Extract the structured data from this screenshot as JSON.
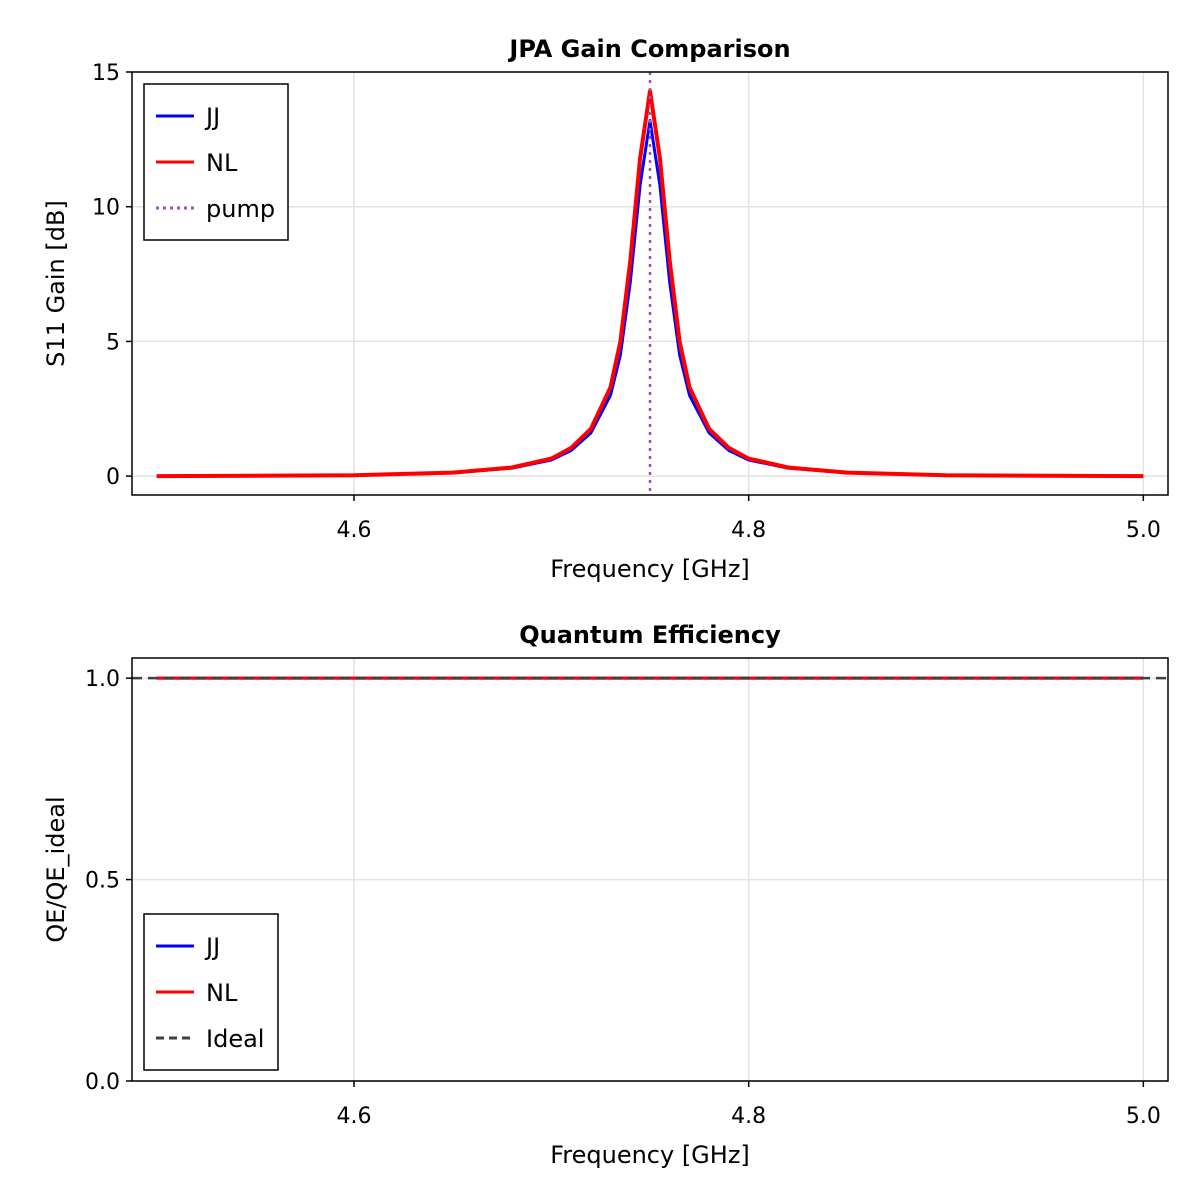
{
  "chart_data": [
    {
      "type": "line",
      "title": "JPA Gain Comparison",
      "xlabel": "Frequency [GHz]",
      "ylabel": "S11 Gain [dB]",
      "xlim": [
        4.4875,
        5.0125
      ],
      "ylim": [
        -0.7,
        15
      ],
      "x_ticks": [
        4.6,
        4.8,
        5.0
      ],
      "x_tick_labels": [
        "4.6",
        "4.8",
        "5.0"
      ],
      "y_ticks": [
        0,
        5,
        10,
        15
      ],
      "y_tick_labels": [
        "0",
        "5",
        "10",
        "15"
      ],
      "grid": true,
      "legend_position": "top-left",
      "series": [
        {
          "name": "JJ",
          "color": "#0000ff",
          "style": "solid",
          "x": [
            4.5,
            4.6,
            4.65,
            4.68,
            4.7,
            4.71,
            4.72,
            4.73,
            4.735,
            4.74,
            4.745,
            4.75,
            4.755,
            4.76,
            4.765,
            4.77,
            4.78,
            4.79,
            4.8,
            4.82,
            4.85,
            4.9,
            5.0
          ],
          "y": [
            0.0,
            0.03,
            0.12,
            0.3,
            0.6,
            0.95,
            1.6,
            3.0,
            4.5,
            7.2,
            10.8,
            13.2,
            10.8,
            7.2,
            4.5,
            3.0,
            1.6,
            0.95,
            0.6,
            0.3,
            0.12,
            0.03,
            0.0
          ]
        },
        {
          "name": "NL",
          "color": "#ff0000",
          "style": "solid",
          "x": [
            4.5,
            4.6,
            4.65,
            4.68,
            4.7,
            4.71,
            4.72,
            4.73,
            4.735,
            4.74,
            4.745,
            4.75,
            4.755,
            4.76,
            4.765,
            4.77,
            4.78,
            4.79,
            4.8,
            4.82,
            4.85,
            4.9,
            5.0
          ],
          "y": [
            0.0,
            0.03,
            0.13,
            0.32,
            0.65,
            1.05,
            1.75,
            3.3,
            5.0,
            8.0,
            11.8,
            14.3,
            11.8,
            8.0,
            5.0,
            3.3,
            1.75,
            1.05,
            0.65,
            0.32,
            0.13,
            0.03,
            0.0
          ]
        }
      ],
      "vlines": [
        {
          "name": "pump",
          "x": 4.75,
          "color": "#a64dbf",
          "style": "dotted"
        }
      ]
    },
    {
      "type": "line",
      "title": "Quantum Efficiency",
      "xlabel": "Frequency [GHz]",
      "ylabel": "QE/QE_ideal",
      "xlim": [
        4.4875,
        5.0125
      ],
      "ylim": [
        0,
        1.05
      ],
      "x_ticks": [
        4.6,
        4.8,
        5.0
      ],
      "x_tick_labels": [
        "4.6",
        "4.8",
        "5.0"
      ],
      "y_ticks": [
        0.0,
        0.5,
        1.0
      ],
      "y_tick_labels": [
        "0.0",
        "0.5",
        "1.0"
      ],
      "grid": true,
      "legend_position": "bottom-left",
      "series": [
        {
          "name": "JJ",
          "color": "#0000ff",
          "style": "solid",
          "x": [
            4.5,
            5.0
          ],
          "y": [
            1.0,
            1.0
          ]
        },
        {
          "name": "NL",
          "color": "#ff0000",
          "style": "solid",
          "x": [
            4.5,
            5.0
          ],
          "y": [
            1.0,
            1.0
          ]
        }
      ],
      "hlines": [
        {
          "name": "Ideal",
          "y": 1.0,
          "color": "#404040",
          "style": "dashed"
        }
      ]
    }
  ]
}
